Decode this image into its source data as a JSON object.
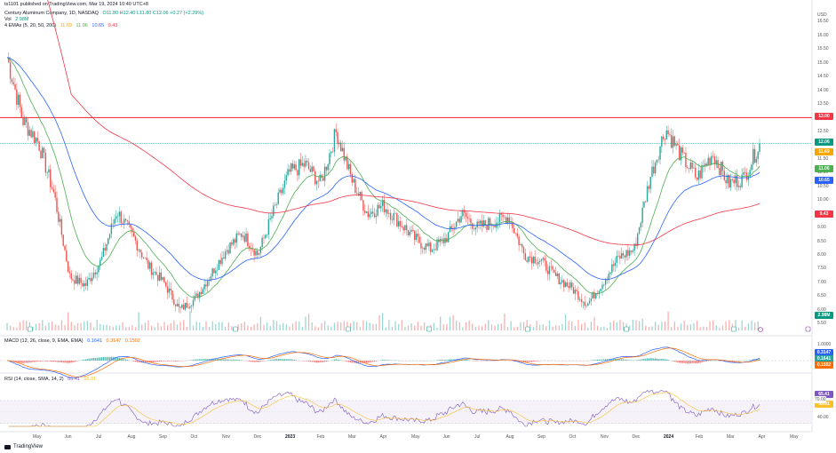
{
  "publisher_line": "ts1101 published on TradingView.com, Mar 19, 2024 10:40 UTC+8",
  "symbol_line": {
    "name": "Century Aluminum Company, 1D, NASDAQ",
    "ohlc": "O11.80 H12.40 L11.80 C12.06 +0.27 (+2.29%)"
  },
  "vol_line": {
    "label": "Vol",
    "value": "2.98M"
  },
  "ema_line": {
    "label": "4 EMAs (5, 20, 50, 200)",
    "values": [
      "11.69",
      "11.06",
      "10.65",
      "9.43"
    ]
  },
  "currency": "USD",
  "macd_line": {
    "label": "MACD (12, 26, close, 9, EMA, EMA)",
    "values": [
      "0.1641",
      "0.3147",
      "0.1502"
    ]
  },
  "rsi_line": {
    "label": "RSI (14, close, SMA, 14, 2)",
    "values": [
      "65.41",
      "55.01"
    ]
  },
  "footer_brand": "TradingView",
  "colors": {
    "up": "#26a69a",
    "down": "#ef5350",
    "ema5": "#f7a600",
    "ema20": "#4caf50",
    "ema50": "#2962ff",
    "ema200": "#f23645",
    "hline": "#f23645",
    "last_price": "#089981",
    "macd": "#2962ff",
    "signal": "#ff6d00",
    "rsi": "#7e57c2",
    "rsi_ma": "#fbc02d"
  },
  "price_axis": {
    "ticks": [
      "16.50",
      "16.00",
      "15.50",
      "15.00",
      "14.50",
      "14.00",
      "13.50",
      "13.00",
      "12.50",
      "12.00",
      "11.50",
      "11.00",
      "10.50",
      "10.00",
      "9.50",
      "9.00",
      "8.50",
      "8.00",
      "7.50",
      "7.00",
      "6.50",
      "6.00",
      "5.50"
    ],
    "labels": {
      "hline": "13.00",
      "last": "12.06",
      "ema5": "11.69",
      "ema20": "11.06",
      "ema50": "10.65",
      "ema200": "9.43",
      "vol": "2.98M"
    }
  },
  "macd_axis": {
    "ticks": [
      "1.0000",
      "0.5000",
      "0.0000"
    ],
    "labels": [
      "0.3147",
      "0.1641",
      "0.1502"
    ]
  },
  "rsi_axis": {
    "ticks": [
      "80.00",
      "60.00",
      "40.00"
    ],
    "labels": [
      "65.41",
      "55.01",
      "70.00"
    ]
  },
  "time_axis": [
    "May",
    "Jun",
    "Jul",
    "Aug",
    "Sep",
    "Oct",
    "Nov",
    "Dec",
    "2023",
    "Feb",
    "Mar",
    "Apr",
    "May",
    "Jun",
    "Jul",
    "Aug",
    "Sep",
    "Oct",
    "Nov",
    "Dec",
    "2024",
    "Feb",
    "Mar",
    "Apr",
    "May"
  ],
  "chart_data": {
    "type": "candlestick",
    "symbol": "Century Aluminum Company, 1D, NASDAQ",
    "ylim": [
      5.25,
      16.8
    ],
    "horizontal_line": 13.0,
    "last_close": 12.06,
    "closes": [
      {
        "date": "May 2022",
        "value": 15.2
      },
      {
        "date": "May 15",
        "value": 12.9
      },
      {
        "date": "Jun 2022",
        "value": 12.1
      },
      {
        "date": "Jun 15",
        "value": 10.2
      },
      {
        "date": "Jul 2022",
        "value": 7.2
      },
      {
        "date": "Jul 15",
        "value": 6.9
      },
      {
        "date": "Aug 2022",
        "value": 7.8
      },
      {
        "date": "Aug 10",
        "value": 9.6
      },
      {
        "date": "Aug 20",
        "value": 8.7
      },
      {
        "date": "Sep 2022",
        "value": 7.6
      },
      {
        "date": "Sep 15",
        "value": 7.0
      },
      {
        "date": "Oct 2022",
        "value": 6.0
      },
      {
        "date": "Oct 15",
        "value": 6.4
      },
      {
        "date": "Nov 2022",
        "value": 7.3
      },
      {
        "date": "Nov 15",
        "value": 8.2
      },
      {
        "date": "Dec 2022",
        "value": 8.8
      },
      {
        "date": "Dec 20",
        "value": 8.0
      },
      {
        "date": "2023",
        "value": 9.6
      },
      {
        "date": "Jan 20",
        "value": 11.0
      },
      {
        "date": "Feb 2023",
        "value": 11.3
      },
      {
        "date": "Feb 20",
        "value": 10.6
      },
      {
        "date": "Mar 2023",
        "value": 12.5
      },
      {
        "date": "Mar 10",
        "value": 10.7
      },
      {
        "date": "Mar 20",
        "value": 9.5
      },
      {
        "date": "Apr 2023",
        "value": 9.8
      },
      {
        "date": "Apr 20",
        "value": 9.2
      },
      {
        "date": "May 2023",
        "value": 8.6
      },
      {
        "date": "May 20",
        "value": 8.2
      },
      {
        "date": "Jun 2023",
        "value": 8.6
      },
      {
        "date": "Jun 15",
        "value": 9.5
      },
      {
        "date": "Jul 2023",
        "value": 9.0
      },
      {
        "date": "Jul 20",
        "value": 9.2
      },
      {
        "date": "Aug 2023",
        "value": 9.4
      },
      {
        "date": "Aug 20",
        "value": 8.0
      },
      {
        "date": "Sep 2023",
        "value": 7.8
      },
      {
        "date": "Sep 20",
        "value": 7.2
      },
      {
        "date": "Oct 2023",
        "value": 6.8
      },
      {
        "date": "Oct 20",
        "value": 6.2
      },
      {
        "date": "Nov 2023",
        "value": 7.0
      },
      {
        "date": "Nov 15",
        "value": 7.9
      },
      {
        "date": "Dec 2023",
        "value": 8.2
      },
      {
        "date": "Dec 10",
        "value": 10.8
      },
      {
        "date": "Dec 20",
        "value": 12.6
      },
      {
        "date": "2024",
        "value": 11.6
      },
      {
        "date": "Jan 15",
        "value": 10.8
      },
      {
        "date": "Feb 2024",
        "value": 11.7
      },
      {
        "date": "Feb 15",
        "value": 10.6
      },
      {
        "date": "Mar 2024",
        "value": 10.8
      },
      {
        "date": "Mar 18",
        "value": 12.06
      }
    ],
    "series": [
      {
        "name": "EMA 5",
        "last": 11.69
      },
      {
        "name": "EMA 20",
        "last": 11.06
      },
      {
        "name": "EMA 50",
        "last": 10.65
      },
      {
        "name": "EMA 200",
        "last": 9.43
      }
    ],
    "volume_last": "2.98M",
    "macd": {
      "macd": 0.3147,
      "signal": 0.1641,
      "histogram": 0.1502
    },
    "rsi": {
      "rsi": 65.41,
      "ma": 55.01,
      "upper": 70,
      "lower": 30
    }
  }
}
